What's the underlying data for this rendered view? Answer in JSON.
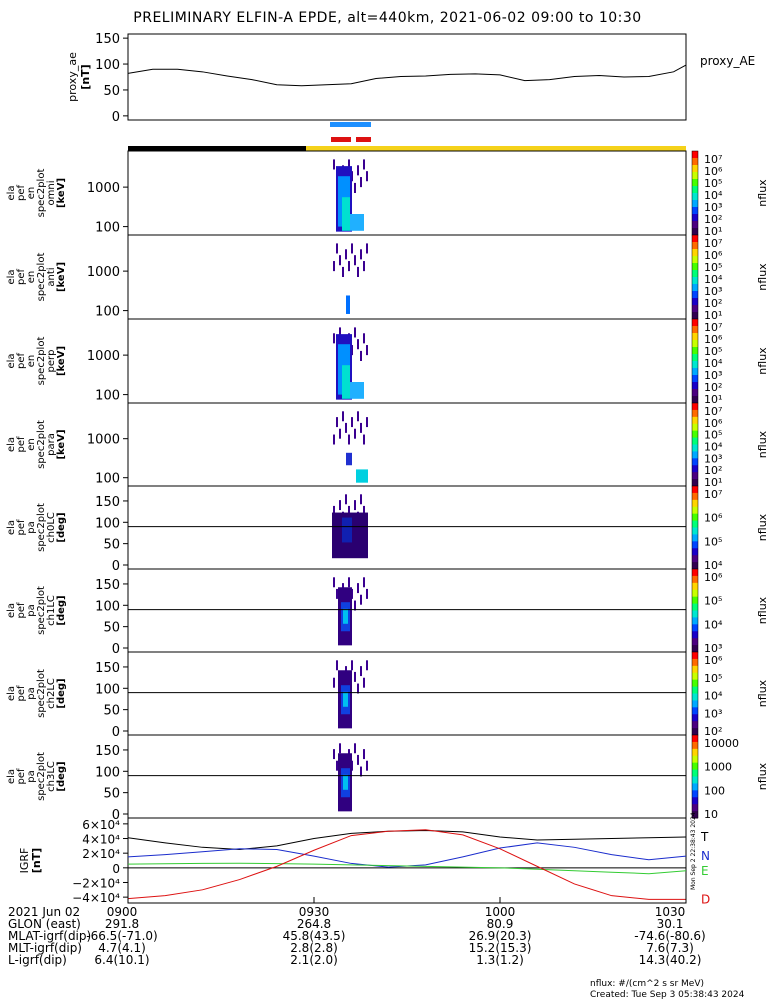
{
  "title": "PRELIMINARY ELFIN-A EPDE, alt=440km, 2021-06-02 09:00 to 10:30",
  "colors": {
    "axis": "#000000",
    "black_bar": "#000000",
    "yellow_bar": "#f5d21a",
    "blue_marker": "#1e90ff",
    "red_marker": "#dd1111",
    "igrf_T": "#000000",
    "igrf_N": "#1a2ccc",
    "igrf_E": "#33cc33",
    "igrf_D": "#dd1111"
  },
  "chart_data": [
    {
      "type": "line",
      "panel": "proxy_ae",
      "ylabel": [
        "proxy_ae",
        "[nT]"
      ],
      "yticks": [
        "150",
        "100",
        "50",
        "0"
      ],
      "ylim": [
        -8,
        158
      ],
      "series_label": "proxy_AE",
      "x": [
        "09:00",
        "09:04",
        "09:08",
        "09:12",
        "09:16",
        "09:20",
        "09:24",
        "09:28",
        "09:32",
        "09:36",
        "09:40",
        "09:44",
        "09:48",
        "09:52",
        "09:56",
        "10:00",
        "10:04",
        "10:08",
        "10:12",
        "10:16",
        "10:20",
        "10:24",
        "10:28",
        "10:30"
      ],
      "values": [
        82,
        90,
        90,
        85,
        77,
        70,
        60,
        58,
        60,
        62,
        72,
        76,
        77,
        80,
        81,
        79,
        68,
        70,
        76,
        78,
        75,
        76,
        85,
        98
      ]
    },
    {
      "type": "heatmap",
      "panel": "ela pef en spec2plot omni",
      "ylabel": [
        "ela",
        "pef",
        "en",
        "spec2plot",
        "omni",
        "[keV]"
      ],
      "yticks": [
        "1000",
        "100"
      ],
      "colorbar_label": "nflux",
      "colorbar_ticks": [
        "10⁷",
        "10⁶",
        "10⁵",
        "10⁴",
        "10³",
        "10²",
        "10¹"
      ]
    },
    {
      "type": "heatmap",
      "panel": "ela pef en spec2plot anti",
      "ylabel": [
        "ela",
        "pef",
        "en",
        "spec2plot",
        "anti",
        "[keV]"
      ],
      "yticks": [
        "1000",
        "100"
      ],
      "colorbar_label": "nflux",
      "colorbar_ticks": [
        "10⁷",
        "10⁶",
        "10⁵",
        "10⁴",
        "10³",
        "10²",
        "10¹"
      ]
    },
    {
      "type": "heatmap",
      "panel": "ela pef en spec2plot perp",
      "ylabel": [
        "ela",
        "pef",
        "en",
        "spec2plot",
        "perp",
        "[keV]"
      ],
      "yticks": [
        "1000",
        "100"
      ],
      "colorbar_label": "nflux",
      "colorbar_ticks": [
        "10⁷",
        "10⁶",
        "10⁵",
        "10⁴",
        "10³",
        "10²",
        "10¹"
      ]
    },
    {
      "type": "heatmap",
      "panel": "ela pef en spec2plot para",
      "ylabel": [
        "ela",
        "pef",
        "en",
        "spec2plot",
        "para",
        "[keV]"
      ],
      "yticks": [
        "1000",
        "100"
      ],
      "colorbar_label": "nflux",
      "colorbar_ticks": [
        "10⁷",
        "10⁶",
        "10⁵",
        "10⁴",
        "10³",
        "10²",
        "10¹"
      ]
    },
    {
      "type": "heatmap",
      "panel": "ela pef pa spec2plot ch0LC",
      "ylabel": [
        "ela",
        "pef",
        "pa",
        "spec2plot",
        "ch0LC",
        "[deg]"
      ],
      "yticks": [
        "150",
        "100",
        "50",
        "0"
      ],
      "colorbar_label": "nflux",
      "colorbar_ticks": [
        "10⁷",
        "10⁶",
        "10⁵",
        "10⁴"
      ]
    },
    {
      "type": "heatmap",
      "panel": "ela pef pa spec2plot ch1LC",
      "ylabel": [
        "ela",
        "pef",
        "pa",
        "spec2plot",
        "ch1LC",
        "[deg]"
      ],
      "yticks": [
        "150",
        "100",
        "50",
        "0"
      ],
      "colorbar_label": "nflux",
      "colorbar_ticks": [
        "10⁶",
        "10⁵",
        "10⁴",
        "10³"
      ]
    },
    {
      "type": "heatmap",
      "panel": "ela pef pa spec2plot ch2LC",
      "ylabel": [
        "ela",
        "pef",
        "pa",
        "spec2plot",
        "ch2LC",
        "[deg]"
      ],
      "yticks": [
        "150",
        "100",
        "50",
        "0"
      ],
      "colorbar_label": "nflux",
      "colorbar_ticks": [
        "10⁶",
        "10⁵",
        "10⁴",
        "10³",
        "10²"
      ]
    },
    {
      "type": "heatmap",
      "panel": "ela pef pa spec2plot ch3LC",
      "ylabel": [
        "ela",
        "pef",
        "pa",
        "spec2plot",
        "ch3LC",
        "[deg]"
      ],
      "yticks": [
        "150",
        "100",
        "50",
        "0"
      ],
      "colorbar_label": "nflux",
      "colorbar_ticks": [
        "10000",
        "1000",
        "100",
        "10"
      ]
    },
    {
      "type": "line",
      "panel": "IGRF",
      "ylabel": [
        "IGRF",
        "[nT]"
      ],
      "yticks": [
        "6×10⁴",
        "4×10⁴",
        "2×10⁴",
        "0",
        "−2×10⁴",
        "−4×10⁴"
      ],
      "ylim": [
        -48000,
        68000
      ],
      "x": [
        "09:00",
        "09:06",
        "09:12",
        "09:18",
        "09:24",
        "09:30",
        "09:36",
        "09:42",
        "09:48",
        "09:54",
        "10:00",
        "10:06",
        "10:12",
        "10:18",
        "10:24",
        "10:30"
      ],
      "series": [
        {
          "name": "T",
          "values": [
            41000,
            34000,
            28000,
            25000,
            30000,
            40000,
            47000,
            50000,
            51000,
            49000,
            42000,
            38000,
            39000,
            40000,
            41000,
            42000
          ]
        },
        {
          "name": "N",
          "values": [
            15000,
            18000,
            22000,
            26000,
            25000,
            16000,
            6000,
            1000,
            4000,
            15000,
            27000,
            34000,
            28000,
            18000,
            11000,
            16000
          ]
        },
        {
          "name": "E",
          "values": [
            5000,
            5500,
            6000,
            6200,
            5800,
            5000,
            4000,
            3000,
            2000,
            1000,
            0,
            -2000,
            -4000,
            -6000,
            -8000,
            -4000
          ]
        },
        {
          "name": "D",
          "values": [
            -42000,
            -38000,
            -30000,
            -16000,
            2000,
            24000,
            44000,
            50000,
            52000,
            45000,
            26000,
            2000,
            -22000,
            -38000,
            -43000,
            -43000
          ]
        }
      ]
    }
  ],
  "x_axis": {
    "tick_labels": [
      "0900",
      "0930",
      "1000",
      "1030"
    ],
    "tick_times": [
      "09:00",
      "09:30",
      "10:00",
      "10:30"
    ]
  },
  "footer": {
    "date_label": "2021 Jun 02",
    "rows": [
      {
        "label": "GLON (east)",
        "values": [
          "291.8",
          "264.8",
          "80.9",
          "30.1"
        ]
      },
      {
        "label": "MLAT-igrf(dip)",
        "values": [
          "-66.5(-71.0)",
          "45.8(43.5)",
          "26.9(20.3)",
          "-74.6(-80.6)"
        ]
      },
      {
        "label": "MLT-igrf(dip)",
        "values": [
          "4.7(4.1)",
          "2.8(2.8)",
          "15.2(15.3)",
          "7.6(7.3)"
        ]
      },
      {
        "label": "L-igrf(dip)",
        "values": [
          "6.4(10.1)",
          "2.1(2.0)",
          "1.3(1.2)",
          "14.3(40.2)"
        ]
      }
    ],
    "units_note": "nflux: #/(cm^2 s sr MeV)",
    "created_note": "Created: Tue Sep  3 05:38:43 2024",
    "vertical_stamp": "Mon Sep  2 22:38:43 2024"
  }
}
